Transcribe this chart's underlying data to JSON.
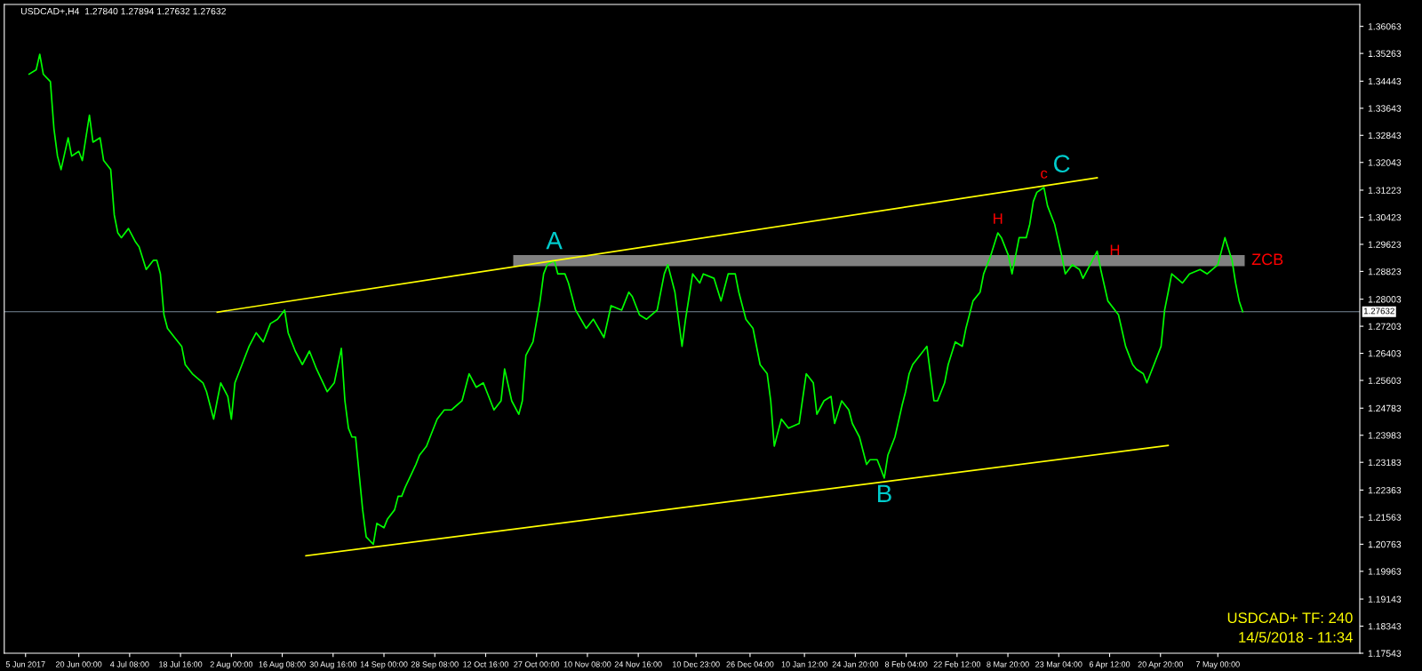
{
  "chart_data": {
    "type": "line",
    "title": "USDCAD+,H4  1.27840 1.27894 1.27632 1.27632",
    "series": [
      {
        "color": "#00ff00",
        "x": [
          "2017-06-06",
          "2017-06-08",
          "2017-06-09",
          "2017-06-10",
          "2017-06-12",
          "2017-06-13",
          "2017-06-14",
          "2017-06-15",
          "2017-06-17",
          "2017-06-18",
          "2017-06-20",
          "2017-06-21",
          "2017-06-23",
          "2017-06-24",
          "2017-06-26",
          "2017-06-27",
          "2017-06-29",
          "2017-06-30",
          "2017-07-01",
          "2017-07-02",
          "2017-07-04",
          "2017-07-06",
          "2017-07-07",
          "2017-07-09",
          "2017-07-11",
          "2017-07-12",
          "2017-07-13",
          "2017-07-14",
          "2017-07-15",
          "2017-07-17",
          "2017-07-19",
          "2017-07-20",
          "2017-07-22",
          "2017-07-25",
          "2017-07-26",
          "2017-07-28",
          "2017-07-29",
          "2017-07-30",
          "2017-08-01",
          "2017-08-02",
          "2017-08-03",
          "2017-08-05",
          "2017-08-07",
          "2017-08-09",
          "2017-08-11",
          "2017-08-13",
          "2017-08-15",
          "2017-08-17",
          "2017-08-18",
          "2017-08-20",
          "2017-08-22",
          "2017-08-24",
          "2017-08-26",
          "2017-08-29",
          "2017-08-31",
          "2017-09-02",
          "2017-09-03",
          "2017-09-04",
          "2017-09-05",
          "2017-09-06",
          "2017-09-07",
          "2017-09-08",
          "2017-09-09",
          "2017-09-11",
          "2017-09-12",
          "2017-09-14",
          "2017-09-15",
          "2017-09-17",
          "2017-09-18",
          "2017-09-19",
          "2017-09-20",
          "2017-09-23",
          "2017-09-24",
          "2017-09-26",
          "2017-09-27",
          "2017-09-29",
          "2017-10-01",
          "2017-10-03",
          "2017-10-06",
          "2017-10-08",
          "2017-10-10",
          "2017-10-12",
          "2017-10-14",
          "2017-10-15",
          "2017-10-17",
          "2017-10-18",
          "2017-10-20",
          "2017-10-22",
          "2017-10-23",
          "2017-10-24",
          "2017-10-26",
          "2017-10-28",
          "2017-10-29",
          "2017-10-30",
          "2017-11-01",
          "2017-11-02",
          "2017-11-04",
          "2017-11-05",
          "2017-11-07",
          "2017-11-10",
          "2017-11-12",
          "2017-11-15",
          "2017-11-17",
          "2017-11-20",
          "2017-11-22",
          "2017-11-23",
          "2017-11-25",
          "2017-11-27",
          "2017-11-30",
          "2017-12-02",
          "2017-12-03",
          "2017-12-05",
          "2017-12-07",
          "2017-12-08",
          "2017-12-10",
          "2017-12-12",
          "2017-12-13",
          "2017-12-16",
          "2017-12-18",
          "2017-12-20",
          "2017-12-22",
          "2017-12-23",
          "2017-12-25",
          "2017-12-27",
          "2017-12-29",
          "2017-12-31",
          "2018-01-01",
          "2018-01-02",
          "2018-01-04",
          "2018-01-06",
          "2018-01-09",
          "2018-01-11",
          "2018-01-13",
          "2018-01-14",
          "2018-01-16",
          "2018-01-18",
          "2018-01-19",
          "2018-01-21",
          "2018-01-23",
          "2018-01-24",
          "2018-01-26",
          "2018-01-28",
          "2018-01-29",
          "2018-01-31",
          "2018-02-01",
          "2018-02-02",
          "2018-02-03",
          "2018-02-05",
          "2018-02-07",
          "2018-02-08",
          "2018-02-09",
          "2018-02-10",
          "2018-02-12",
          "2018-02-14",
          "2018-02-16",
          "2018-02-17",
          "2018-02-19",
          "2018-02-20",
          "2018-02-22",
          "2018-02-24",
          "2018-02-25",
          "2018-02-27",
          "2018-03-01",
          "2018-03-02",
          "2018-03-04",
          "2018-03-06",
          "2018-03-07",
          "2018-03-09",
          "2018-03-10",
          "2018-03-12",
          "2018-03-14",
          "2018-03-15",
          "2018-03-16",
          "2018-03-17",
          "2018-03-19",
          "2018-03-20",
          "2018-03-22",
          "2018-03-24",
          "2018-03-25",
          "2018-03-27",
          "2018-03-29",
          "2018-03-30",
          "2018-04-01",
          "2018-04-03",
          "2018-04-04",
          "2018-04-06",
          "2018-04-08",
          "2018-04-09",
          "2018-04-11",
          "2018-04-13",
          "2018-04-14",
          "2018-04-16",
          "2018-04-17",
          "2018-04-19",
          "2018-04-21",
          "2018-04-22",
          "2018-04-23",
          "2018-04-24",
          "2018-04-27",
          "2018-04-29",
          "2018-05-02",
          "2018-05-04",
          "2018-05-07",
          "2018-05-08",
          "2018-05-09",
          "2018-05-11",
          "2018-05-12",
          "2018-05-13",
          "2018-05-14"
        ],
        "values": [
          1.3465,
          1.3478,
          1.3524,
          1.3465,
          1.3443,
          1.3304,
          1.3223,
          1.3183,
          1.3277,
          1.3223,
          1.3237,
          1.321,
          1.3344,
          1.3264,
          1.3277,
          1.321,
          1.3183,
          1.3049,
          1.2996,
          1.2982,
          1.3009,
          1.2969,
          1.2955,
          1.2888,
          1.2915,
          1.2915,
          1.2875,
          1.2754,
          1.2714,
          1.2687,
          1.2661,
          1.2607,
          1.258,
          1.2553,
          1.2527,
          1.2446,
          1.25,
          1.2553,
          1.2513,
          1.2446,
          1.2553,
          1.2607,
          1.2661,
          1.2701,
          1.2674,
          1.2728,
          1.2741,
          1.2768,
          1.2701,
          1.2647,
          1.2607,
          1.2647,
          1.2594,
          1.2527,
          1.2553,
          1.2655,
          1.25,
          1.2419,
          1.2393,
          1.2393,
          1.2285,
          1.2178,
          1.2098,
          1.2076,
          1.2138,
          1.2125,
          1.2151,
          1.2178,
          1.2218,
          1.2218,
          1.2245,
          1.2312,
          1.2339,
          1.2366,
          1.2393,
          1.2446,
          1.2473,
          1.2473,
          1.25,
          1.258,
          1.254,
          1.2553,
          1.25,
          1.2473,
          1.25,
          1.2594,
          1.25,
          1.246,
          1.25,
          1.2634,
          1.2674,
          1.2795,
          1.2875,
          1.2902,
          1.2915,
          1.2875,
          1.2875,
          1.2848,
          1.2768,
          1.2714,
          1.2741,
          1.2687,
          1.2781,
          1.2768,
          1.2821,
          1.2808,
          1.2754,
          1.2741,
          1.2768,
          1.2875,
          1.2902,
          1.2821,
          1.2661,
          1.2741,
          1.2875,
          1.2848,
          1.2875,
          1.2862,
          1.2795,
          1.2875,
          1.2875,
          1.2821,
          1.2741,
          1.2714,
          1.2607,
          1.258,
          1.25,
          1.2366,
          1.2446,
          1.2419,
          1.2433,
          1.258,
          1.2553,
          1.246,
          1.25,
          1.2513,
          1.2433,
          1.25,
          1.2473,
          1.2433,
          1.2393,
          1.2312,
          1.2326,
          1.2326,
          1.2299,
          1.2272,
          1.2339,
          1.2393,
          1.2486,
          1.2527,
          1.258,
          1.2607,
          1.2634,
          1.2661,
          1.25,
          1.25,
          1.2553,
          1.2607,
          1.2674,
          1.2661,
          1.2714,
          1.2795,
          1.2821,
          1.2875,
          1.2929,
          1.2996,
          1.2982,
          1.2929,
          1.2875,
          1.2982,
          1.2982,
          1.3022,
          1.3089,
          1.3116,
          1.313,
          1.3076,
          1.3022,
          1.2929,
          1.2875,
          1.2902,
          1.2888,
          1.2862,
          1.2902,
          1.2942,
          1.2888,
          1.2795,
          1.2768,
          1.2754,
          1.2661,
          1.2607,
          1.2594,
          1.258,
          1.2553,
          1.2607,
          1.2661,
          1.2768,
          1.2821,
          1.2875,
          1.2848,
          1.2875,
          1.2888,
          1.2875,
          1.2902,
          1.2942,
          1.2982,
          1.2915,
          1.2848,
          1.2795,
          1.2763
        ]
      },
      {
        "color": "#808080",
        "x": [
          "2017-10-22",
          "2018-05-13"
        ],
        "values": [
          1.2914,
          1.2914
        ]
      },
      {
        "color": "#ffff00",
        "x": [
          "2017-07-29",
          "2018-04-03"
        ],
        "values": [
          1.2762,
          1.3159
        ]
      },
      {
        "color": "#ffff00",
        "x": [
          "2017-08-23",
          "2018-04-23"
        ],
        "values": [
          1.2042,
          1.2368
        ]
      }
    ],
    "xlim": [
      "2017-05-30",
      "2018-06-16"
    ],
    "xticks": [
      {
        "value": "2017-06-05",
        "label": "5 Jun 2017"
      },
      {
        "value": "2017-06-20T00:00",
        "label": "20 Jun 00:00"
      },
      {
        "value": "2017-07-04T08:00",
        "label": "4 Jul 08:00"
      },
      {
        "value": "2017-07-18T16:00",
        "label": "18 Jul 16:00"
      },
      {
        "value": "2017-08-02T00:00",
        "label": "2 Aug 00:00"
      },
      {
        "value": "2017-08-16T08:00",
        "label": "16 Aug 08:00"
      },
      {
        "value": "2017-08-30T16:00",
        "label": "30 Aug 16:00"
      },
      {
        "value": "2017-09-14T00:00",
        "label": "14 Sep 00:00"
      },
      {
        "value": "2017-09-28T08:00",
        "label": "28 Sep 08:00"
      },
      {
        "value": "2017-10-12T16:00",
        "label": "12 Oct 16:00"
      },
      {
        "value": "2017-10-27T00:00",
        "label": "27 Oct 00:00"
      },
      {
        "value": "2017-11-10T08:00",
        "label": "10 Nov 08:00"
      },
      {
        "value": "2017-11-24T16:00",
        "label": "24 Nov 16:00"
      },
      {
        "value": "2017-12-10T23:00",
        "label": "10 Dec 23:00"
      },
      {
        "value": "2017-12-26T04:00",
        "label": "26 Dec 04:00"
      },
      {
        "value": "2018-01-10T12:00",
        "label": "10 Jan 12:00"
      },
      {
        "value": "2018-01-24T20:00",
        "label": "24 Jan 20:00"
      },
      {
        "value": "2018-02-08T04:00",
        "label": "8 Feb 04:00"
      },
      {
        "value": "2018-02-22T12:00",
        "label": "22 Feb 12:00"
      },
      {
        "value": "2018-03-08T20:00",
        "label": "8 Mar 20:00"
      },
      {
        "value": "2018-03-23T04:00",
        "label": "23 Mar 04:00"
      },
      {
        "value": "2018-04-06T12:00",
        "label": "6 Apr 12:00"
      },
      {
        "value": "2018-04-20T20:00",
        "label": "20 Apr 20:00"
      },
      {
        "value": "2018-05-07T00:00",
        "label": "7 May 00:00"
      }
    ],
    "ylim": [
      1.17543,
      1.3671
    ],
    "yticks": [
      1.36063,
      1.35263,
      1.34443,
      1.33643,
      1.32843,
      1.32043,
      1.31223,
      1.30423,
      1.29623,
      1.28823,
      1.28003,
      1.27203,
      1.26403,
      1.25603,
      1.24783,
      1.23983,
      1.23183,
      1.22363,
      1.21563,
      1.20763,
      1.19963,
      1.19143,
      1.18343,
      1.17543
    ],
    "ref_lines": [
      {
        "axis": "y",
        "value": 1.27632,
        "label": "1.27632",
        "color": "#778899"
      }
    ],
    "annotations": [
      {
        "text": "A",
        "x": "2017-11-01",
        "y": 1.2915
      },
      {
        "text": "B",
        "x": "2018-02-02",
        "y": 1.2272
      },
      {
        "text": "C",
        "x": "2018-03-24",
        "y": 1.3142
      },
      {
        "text": "H",
        "x": "2018-03-06",
        "y": 1.2996
      },
      {
        "text": "c",
        "x": "2018-03-19",
        "y": 1.313
      },
      {
        "text": "H",
        "x": "2018-04-03",
        "y": 1.2942
      },
      {
        "text": "ZCB",
        "x": "2018-05-13",
        "y": 1.2914
      },
      "USDCAD+ TF: 240",
      "14/5/2018 - 11:34"
    ],
    "grid": false,
    "legend": false
  }
}
